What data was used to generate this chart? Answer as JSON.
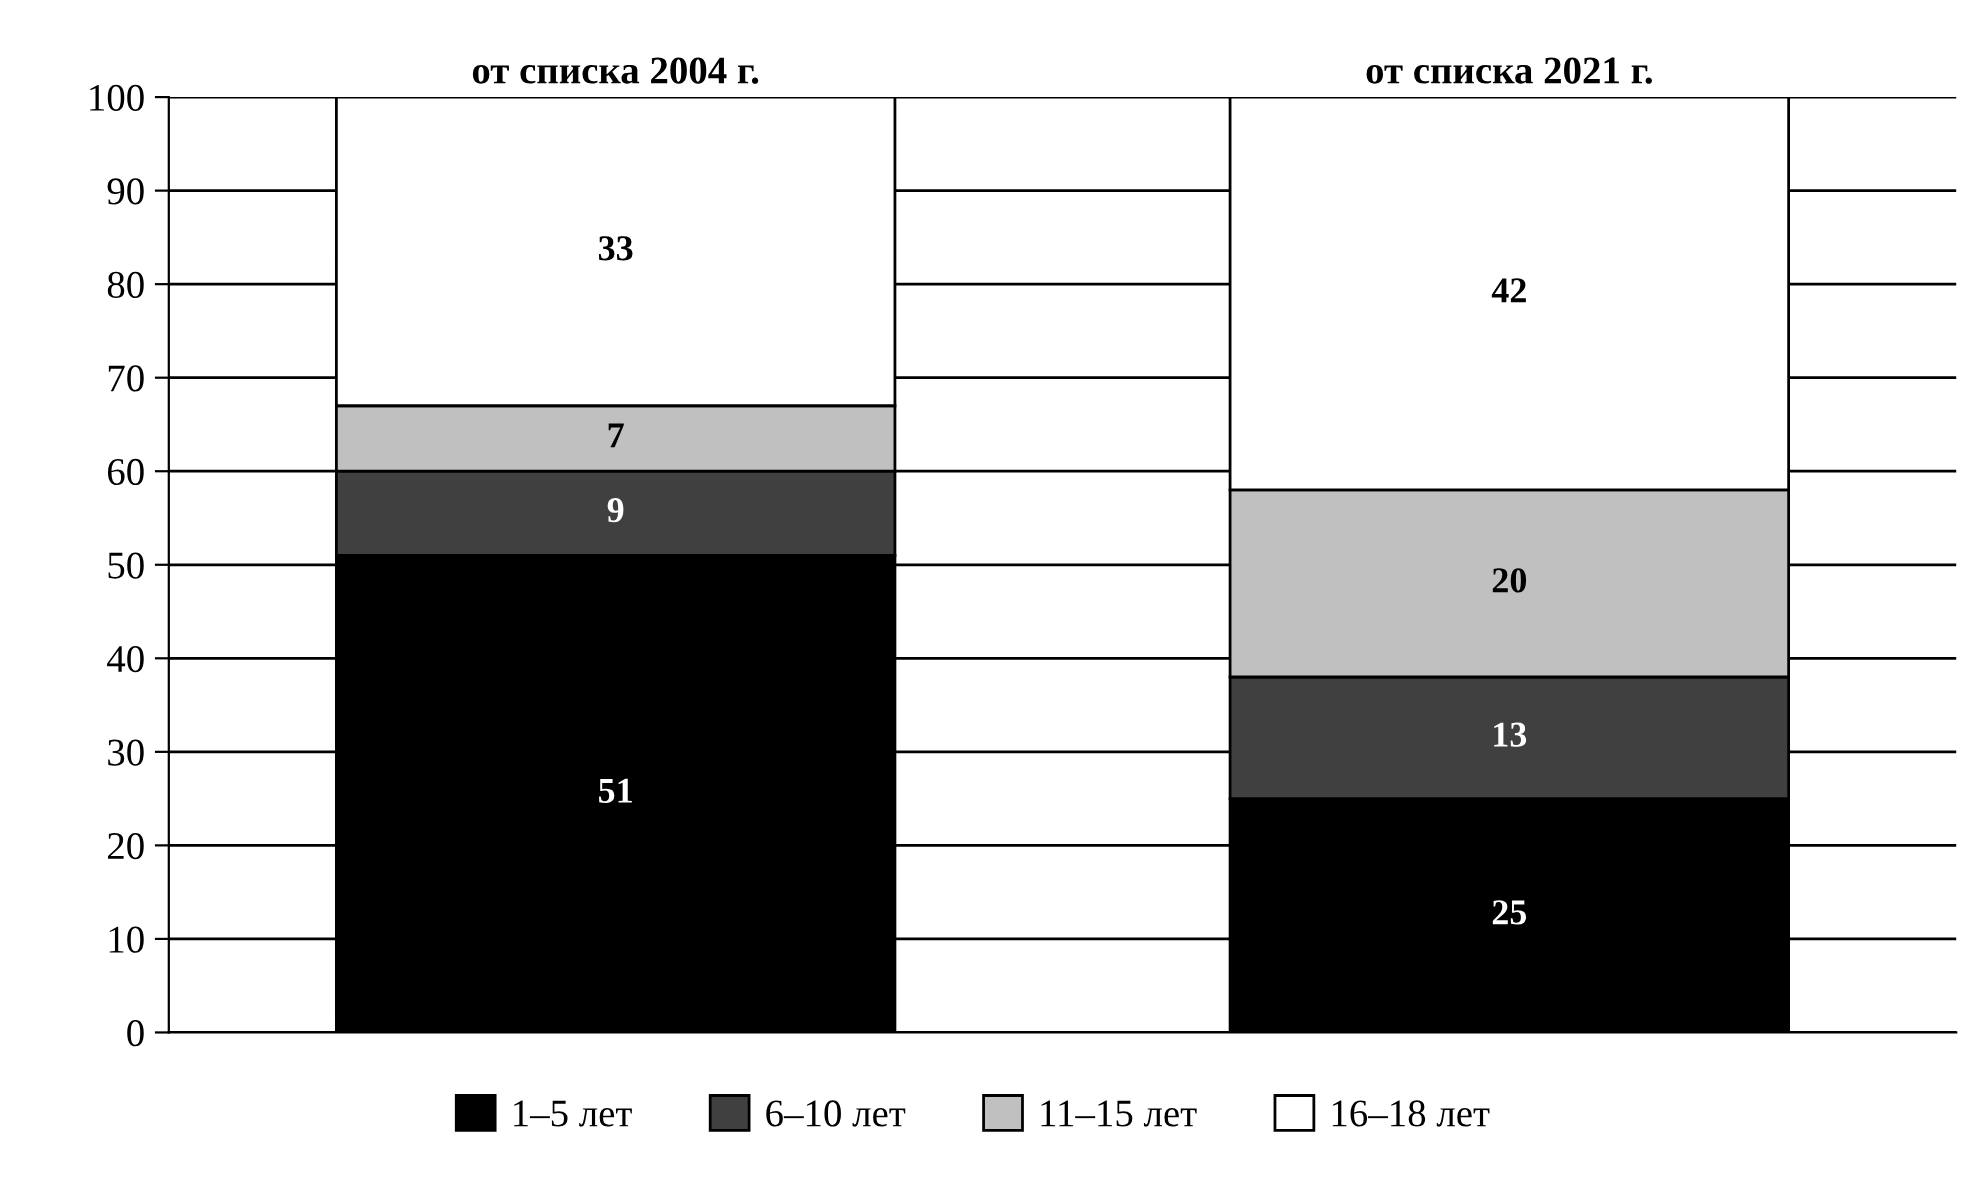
{
  "chart_data": {
    "type": "bar",
    "stacked": true,
    "categories": [
      "от списка 2004 г.",
      "от списка 2021 г."
    ],
    "series": [
      {
        "name": "1–5 лет",
        "color": "#000000",
        "values": [
          51,
          25
        ]
      },
      {
        "name": "6–10 лет",
        "color": "#404040",
        "values": [
          9,
          13
        ]
      },
      {
        "name": "11–15 лет",
        "color": "#c0c0c0",
        "values": [
          7,
          20
        ]
      },
      {
        "name": "16–18 лет",
        "color": "#ffffff",
        "values": [
          33,
          42
        ]
      }
    ],
    "ylim": [
      0,
      100
    ],
    "yticks": [
      0,
      10,
      20,
      30,
      40,
      50,
      60,
      70,
      80,
      90,
      100
    ],
    "grid": "y",
    "legend": "bottom",
    "data_labels": true
  }
}
